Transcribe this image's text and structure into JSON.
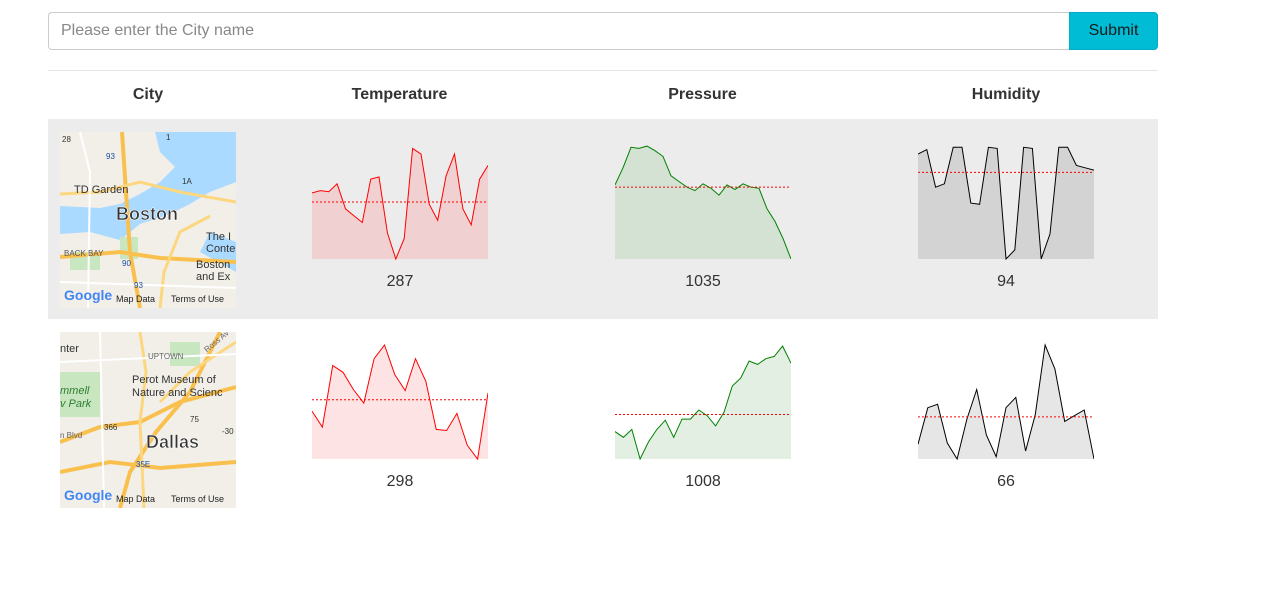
{
  "search": {
    "placeholder": "Please enter the City name",
    "value": ""
  },
  "submit_label": "Submit",
  "table": {
    "headers": [
      "City",
      "Temperature",
      "Pressure",
      "Humidity"
    ]
  },
  "colors": {
    "temperature": "#ff0000",
    "pressure": "#008000",
    "humidity": "#000000",
    "reference_line": "#ff0000"
  },
  "cities": [
    {
      "map_labels": {
        "name": "Boston",
        "attr": "Map Data",
        "terms": "Terms of Use",
        "logo": "Google",
        "places": [
          "TD Garden",
          "BACK BAY",
          "The I",
          "Conte",
          "Boston",
          "and Ex",
          "28",
          "93",
          "1",
          "1A",
          "90",
          "93"
        ]
      },
      "temperature": {
        "value": "287",
        "reference": 0.5,
        "series": [
          0.58,
          0.6,
          0.59,
          0.66,
          0.44,
          0.38,
          0.32,
          0.7,
          0.72,
          0.23,
          0.0,
          0.18,
          0.97,
          0.92,
          0.48,
          0.34,
          0.73,
          0.92,
          0.44,
          0.3,
          0.7,
          0.82
        ]
      },
      "pressure": {
        "value": "1035",
        "reference": 0.63,
        "series": [
          0.65,
          0.8,
          0.98,
          0.97,
          0.99,
          0.95,
          0.9,
          0.73,
          0.68,
          0.63,
          0.6,
          0.66,
          0.62,
          0.56,
          0.65,
          0.61,
          0.66,
          0.63,
          0.62,
          0.44,
          0.33,
          0.18,
          0.0
        ]
      },
      "humidity": {
        "value": "94",
        "reference": 0.76,
        "series": [
          0.92,
          0.96,
          0.63,
          0.66,
          0.98,
          0.98,
          0.49,
          0.48,
          0.98,
          0.97,
          0.0,
          0.08,
          0.98,
          0.97,
          0.0,
          0.22,
          0.98,
          0.98,
          0.82,
          0.8,
          0.78
        ]
      }
    },
    {
      "map_labels": {
        "name": "Dallas",
        "attr": "Map Data",
        "terms": "Terms of Use",
        "logo": "Google",
        "places": [
          "nter",
          "UPTOWN",
          "Perot Museum of",
          "Nature and Scienc",
          "mmell",
          "v Park",
          "n Blvd",
          "Ross Av",
          "366",
          "75",
          "35E",
          "-30"
        ]
      },
      "temperature": {
        "value": "298",
        "reference": 0.52,
        "series": [
          0.42,
          0.28,
          0.82,
          0.76,
          0.61,
          0.49,
          0.88,
          1.0,
          0.74,
          0.6,
          0.88,
          0.68,
          0.26,
          0.25,
          0.4,
          0.12,
          0.0,
          0.58
        ]
      },
      "pressure": {
        "value": "1008",
        "reference": 0.39,
        "series": [
          0.24,
          0.19,
          0.26,
          0.0,
          0.15,
          0.26,
          0.34,
          0.19,
          0.35,
          0.35,
          0.43,
          0.38,
          0.29,
          0.41,
          0.64,
          0.71,
          0.86,
          0.83,
          0.88,
          0.9,
          0.99,
          0.84
        ]
      },
      "humidity": {
        "value": "66",
        "reference": 0.37,
        "series": [
          0.13,
          0.45,
          0.48,
          0.14,
          0.0,
          0.35,
          0.61,
          0.21,
          0.02,
          0.45,
          0.54,
          0.07,
          0.39,
          1.0,
          0.79,
          0.33,
          0.38,
          0.43,
          0.0
        ]
      }
    }
  ]
}
